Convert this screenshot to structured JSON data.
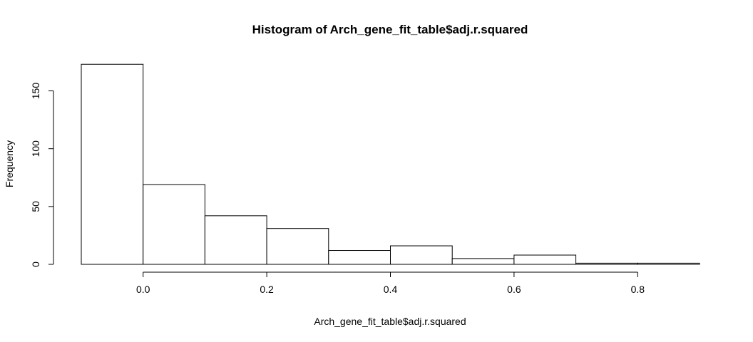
{
  "chart_data": {
    "type": "bar",
    "title": "Histogram of Arch_gene_fit_table$adj.r.squared",
    "xlabel": "Arch_gene_fit_table$adj.r.squared",
    "ylabel": "Frequency",
    "bins": [
      {
        "x0": -0.1,
        "x1": 0.0,
        "count": 173
      },
      {
        "x0": 0.0,
        "x1": 0.1,
        "count": 69
      },
      {
        "x0": 0.1,
        "x1": 0.2,
        "count": 42
      },
      {
        "x0": 0.2,
        "x1": 0.3,
        "count": 31
      },
      {
        "x0": 0.3,
        "x1": 0.4,
        "count": 12
      },
      {
        "x0": 0.4,
        "x1": 0.5,
        "count": 16
      },
      {
        "x0": 0.5,
        "x1": 0.6,
        "count": 5
      },
      {
        "x0": 0.6,
        "x1": 0.7,
        "count": 8
      },
      {
        "x0": 0.7,
        "x1": 0.8,
        "count": 1
      },
      {
        "x0": 0.8,
        "x1": 0.9,
        "count": 1
      }
    ],
    "xlim": [
      -0.1,
      0.9
    ],
    "ylim": [
      0,
      175
    ],
    "x_ticks": [
      0.0,
      0.2,
      0.4,
      0.6,
      0.8
    ],
    "x_tick_labels": [
      "0.0",
      "0.2",
      "0.4",
      "0.6",
      "0.8"
    ],
    "y_ticks": [
      0,
      50,
      100,
      150
    ],
    "y_tick_labels": [
      "0",
      "50",
      "100",
      "150"
    ],
    "grid": false,
    "fill_color": "#ffffff",
    "stroke_color": "#000000"
  }
}
